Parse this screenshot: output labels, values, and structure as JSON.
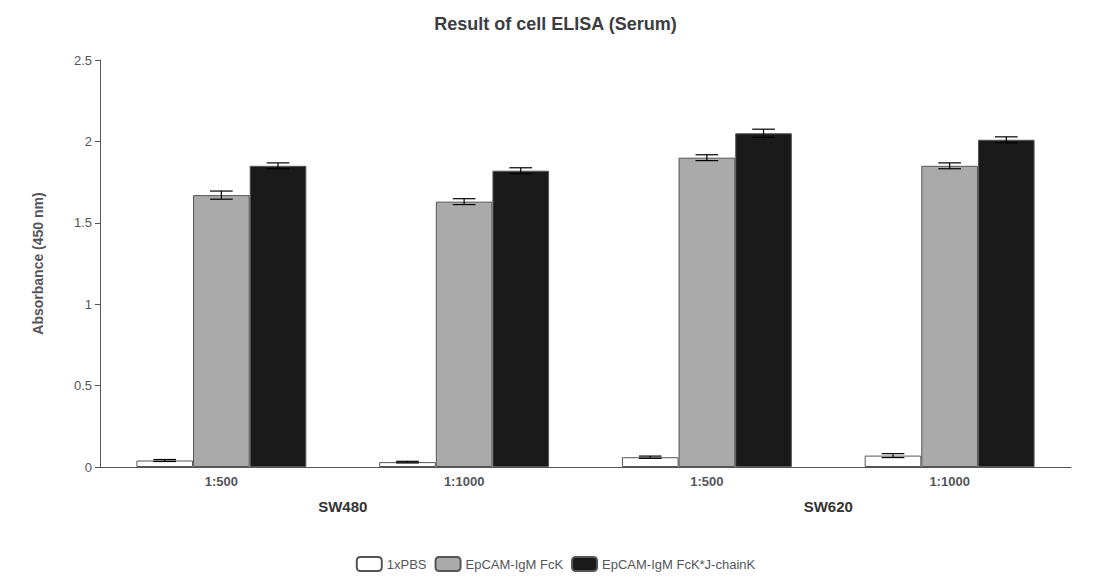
{
  "chart_data": {
    "type": "bar",
    "title": "Result of cell ELISA (Serum)",
    "y_label": "Absorbance (450 nm)",
    "categories": [
      "1:500",
      "1:1000",
      "1:500",
      "1:1000"
    ],
    "annotations": [
      "SW480",
      "SW620"
    ],
    "series": [
      {
        "name": "1xPBS",
        "color": "#ffffff",
        "values": [
          0.04,
          0.03,
          0.06,
          0.07
        ],
        "errors": [
          0.006,
          0.005,
          0.007,
          0.012
        ]
      },
      {
        "name": "EpCAM-IgM FcK",
        "color": "#aaaaaa",
        "values": [
          1.67,
          1.63,
          1.9,
          1.85
        ],
        "errors": [
          0.025,
          0.018,
          0.018,
          0.018
        ]
      },
      {
        "name": "EpCAM-IgM FcK*J-chainK",
        "color": "#1a1a1a",
        "values": [
          1.85,
          1.82,
          2.05,
          2.01
        ],
        "errors": [
          0.018,
          0.018,
          0.025,
          0.018
        ]
      }
    ],
    "ylim": [
      0,
      2.5
    ],
    "yticks": [
      0,
      0.5,
      1,
      1.5,
      2,
      2.5
    ],
    "grid": false,
    "legend": "bottom"
  }
}
